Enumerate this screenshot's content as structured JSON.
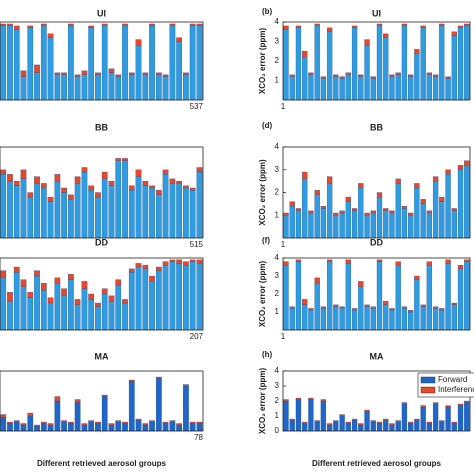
{
  "chart_data": [
    {
      "type": "bar",
      "title": "UI",
      "x_end_label": "537",
      "ylim": [
        0,
        4
      ],
      "series": [
        {
          "name": "Forward",
          "color": "#2f9be0",
          "values": [
            3.8,
            3.8,
            3.6,
            1.2,
            3.7,
            1.4,
            3.8,
            3.2,
            1.3,
            1.3,
            3.8,
            1.2,
            1.3,
            3.7,
            1.3,
            3.8,
            1.4,
            1.2,
            3.8,
            1.3,
            2.8,
            1.3,
            3.8,
            1.3,
            1.2,
            3.8,
            3.0,
            1.3,
            3.8,
            3.8
          ]
        },
        {
          "name": "Interference",
          "color": "#e8472a",
          "values": [
            0.1,
            0.1,
            0.2,
            0.3,
            0.1,
            0.4,
            0.1,
            0.2,
            0.1,
            0.1,
            0.1,
            0.1,
            0.2,
            0.1,
            0.1,
            0.1,
            0.2,
            0.1,
            0.1,
            0.1,
            0.3,
            0.1,
            0.1,
            0.1,
            0.1,
            0.1,
            0.2,
            0.1,
            0.1,
            0.1
          ]
        }
      ]
    },
    {
      "type": "bar",
      "panel_label": "(b)",
      "title": "UI",
      "y_label": "XCO₂ error (ppm)",
      "x_start_label": 1,
      "ylim": [
        0,
        4
      ],
      "yticks": [
        1,
        2,
        3,
        4
      ],
      "series": [
        {
          "name": "Forward",
          "color": "#2f9be0",
          "values": [
            3.6,
            1.2,
            3.7,
            2.2,
            1.3,
            3.8,
            1.1,
            3.5,
            1.2,
            1.1,
            1.3,
            3.7,
            1.2,
            2.8,
            1.1,
            3.8,
            3.2,
            1.2,
            1.3,
            3.8,
            1.2,
            2.4,
            3.7,
            1.3,
            1.2,
            3.8,
            1.1,
            3.3,
            3.7,
            3.8
          ]
        },
        {
          "name": "Interference",
          "color": "#e8472a",
          "values": [
            0.2,
            0.1,
            0.1,
            0.3,
            0.1,
            0.1,
            0.1,
            0.2,
            0.1,
            0.1,
            0.1,
            0.1,
            0.1,
            0.3,
            0.1,
            0.1,
            0.2,
            0.1,
            0.1,
            0.1,
            0.1,
            0.2,
            0.1,
            0.1,
            0.1,
            0.1,
            0.1,
            0.2,
            0.1,
            0.1
          ]
        }
      ]
    },
    {
      "type": "bar",
      "title": "BB",
      "x_end_label": "515",
      "ylim": [
        0,
        4
      ],
      "series": [
        {
          "name": "Forward",
          "color": "#2f9be0",
          "values": [
            2.8,
            2.5,
            2.3,
            2.6,
            1.8,
            2.4,
            2.2,
            1.6,
            2.5,
            2.0,
            1.7,
            2.4,
            2.9,
            2.1,
            1.8,
            2.6,
            2.3,
            3.4,
            3.4,
            2.1,
            2.7,
            2.3,
            2.2,
            1.9,
            2.8,
            2.4,
            2.4,
            2.2,
            2.1,
            2.9
          ]
        },
        {
          "name": "Interference",
          "color": "#e8472a",
          "values": [
            0.2,
            0.3,
            0.2,
            0.4,
            0.2,
            0.3,
            0.2,
            0.2,
            0.3,
            0.2,
            0.2,
            0.3,
            0.2,
            0.2,
            0.2,
            0.3,
            0.2,
            0.1,
            0.1,
            0.2,
            0.3,
            0.2,
            0.1,
            0.2,
            0.2,
            0.2,
            0.1,
            0.1,
            0.1,
            0.2
          ]
        }
      ]
    },
    {
      "type": "bar",
      "panel_label": "(d)",
      "title": "BB",
      "y_label": "XCO₂ error (ppm)",
      "x_start_label": 1,
      "ylim": [
        0,
        4
      ],
      "yticks": [
        1,
        2,
        3,
        4
      ],
      "series": [
        {
          "name": "Forward",
          "color": "#2f9be0",
          "values": [
            1.0,
            1.4,
            1.2,
            2.6,
            1.1,
            1.9,
            1.3,
            2.4,
            1.0,
            1.1,
            1.6,
            1.2,
            2.2,
            1.0,
            1.1,
            1.8,
            1.2,
            1.1,
            2.4,
            1.3,
            1.0,
            2.2,
            1.5,
            1.1,
            2.5,
            1.6,
            2.8,
            1.2,
            3.0,
            3.2
          ]
        },
        {
          "name": "Interference",
          "color": "#e8472a",
          "values": [
            0.1,
            0.2,
            0.1,
            0.3,
            0.1,
            0.2,
            0.1,
            0.3,
            0.1,
            0.1,
            0.2,
            0.1,
            0.2,
            0.1,
            0.1,
            0.2,
            0.1,
            0.1,
            0.2,
            0.1,
            0.1,
            0.2,
            0.2,
            0.1,
            0.2,
            0.2,
            0.2,
            0.1,
            0.2,
            0.2
          ]
        }
      ]
    },
    {
      "type": "bar",
      "title": "DD",
      "x_end_label": "207",
      "ylim": [
        0,
        4
      ],
      "series": [
        {
          "name": "Forward",
          "color": "#2f9be0",
          "values": [
            2.9,
            1.6,
            3.2,
            2.4,
            1.8,
            3.0,
            2.2,
            1.5,
            2.6,
            1.9,
            2.8,
            1.4,
            2.3,
            1.7,
            1.3,
            2.0,
            1.6,
            2.5,
            1.5,
            3.2,
            3.5,
            3.4,
            2.7,
            3.3,
            3.6,
            3.8,
            3.7,
            3.6,
            3.8,
            3.7
          ]
        },
        {
          "name": "Interference",
          "color": "#e8472a",
          "values": [
            0.4,
            0.5,
            0.3,
            0.4,
            0.3,
            0.3,
            0.4,
            0.3,
            0.3,
            0.4,
            0.3,
            0.3,
            0.4,
            0.3,
            0.2,
            0.3,
            0.3,
            0.3,
            0.2,
            0.2,
            0.2,
            0.2,
            0.3,
            0.2,
            0.2,
            0.1,
            0.2,
            0.2,
            0.1,
            0.2
          ]
        }
      ]
    },
    {
      "type": "bar",
      "panel_label": "(f)",
      "title": "DD",
      "y_label": "XCO₂ error (ppm)",
      "x_start_label": 1,
      "ylim": [
        0,
        4
      ],
      "yticks": [
        1,
        2,
        3,
        4
      ],
      "series": [
        {
          "name": "Forward",
          "color": "#2f9be0",
          "values": [
            3.6,
            1.2,
            3.8,
            1.4,
            1.1,
            2.6,
            1.2,
            3.8,
            1.3,
            1.2,
            3.7,
            1.1,
            2.4,
            1.3,
            1.2,
            3.8,
            1.4,
            1.1,
            3.6,
            1.2,
            1.0,
            2.8,
            1.3,
            3.6,
            1.2,
            1.1,
            3.7,
            1.4,
            3.4,
            3.8
          ]
        },
        {
          "name": "Interference",
          "color": "#e8472a",
          "values": [
            0.2,
            0.1,
            0.1,
            0.3,
            0.1,
            0.3,
            0.1,
            0.1,
            0.1,
            0.1,
            0.2,
            0.1,
            0.3,
            0.1,
            0.1,
            0.1,
            0.2,
            0.1,
            0.2,
            0.1,
            0.1,
            0.2,
            0.1,
            0.2,
            0.1,
            0.1,
            0.2,
            0.1,
            0.2,
            0.1
          ]
        }
      ]
    },
    {
      "type": "bar",
      "title": "MA",
      "x_end_label": "78",
      "x_label": "Different retrieved aerosol groups",
      "ylim": [
        0,
        4
      ],
      "series": [
        {
          "name": "Forward",
          "color": "#1f66c8",
          "values": [
            0.9,
            0.5,
            0.6,
            0.4,
            1.0,
            0.3,
            0.5,
            0.4,
            2.0,
            0.6,
            0.5,
            1.9,
            0.4,
            0.6,
            0.5,
            2.3,
            0.4,
            0.6,
            0.5,
            3.3,
            0.7,
            0.4,
            0.6,
            3.5,
            0.5,
            0.6,
            0.4,
            3.0,
            0.5,
            0.5
          ]
        },
        {
          "name": "Interference",
          "color": "#e8472a",
          "values": [
            0.2,
            0.1,
            0.1,
            0.1,
            0.2,
            0.1,
            0.1,
            0.1,
            0.3,
            0.1,
            0.1,
            0.2,
            0.1,
            0.1,
            0.1,
            0.1,
            0.1,
            0.1,
            0.1,
            0.1,
            0.1,
            0.1,
            0.1,
            0.1,
            0.1,
            0.1,
            0.1,
            0.1,
            0.1,
            0.1
          ]
        }
      ]
    },
    {
      "type": "bar",
      "panel_label": "(h)",
      "title": "MA",
      "y_label": "XCO₂ error (ppm)",
      "x_label": "Different retrieved aerosol groups",
      "ylim": [
        0,
        4
      ],
      "yticks": [
        0,
        1,
        2,
        3,
        4
      ],
      "legend": "upper right",
      "series": [
        {
          "name": "Forward",
          "color": "#1f66c8",
          "values": [
            2.0,
            0.7,
            2.1,
            0.5,
            2.1,
            0.6,
            2.0,
            0.4,
            0.6,
            1.0,
            0.5,
            0.7,
            0.4,
            1.3,
            0.6,
            0.5,
            0.7,
            0.4,
            0.6,
            1.8,
            0.5,
            0.7,
            1.6,
            0.5,
            1.8,
            0.6,
            1.6,
            0.5,
            1.7,
            1.9
          ]
        },
        {
          "name": "Interference",
          "color": "#e8472a",
          "values": [
            0.1,
            0.1,
            0.1,
            0.1,
            0.1,
            0.1,
            0.1,
            0.1,
            0.1,
            0.1,
            0.1,
            0.1,
            0.1,
            0.1,
            0.1,
            0.1,
            0.1,
            0.1,
            0.1,
            0.1,
            0.1,
            0.1,
            0.1,
            0.1,
            0.1,
            0.1,
            0.1,
            0.1,
            0.1,
            0.1
          ]
        }
      ]
    }
  ]
}
